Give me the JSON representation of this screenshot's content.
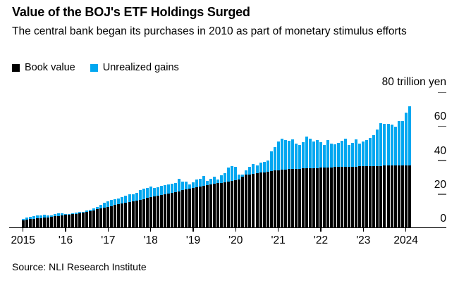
{
  "header": {
    "title": "Value of the BOJ's ETF Holdings Surged",
    "subtitle": "The central bank began its purchases in 2010 as part of monetary stimulus efforts"
  },
  "legend": [
    {
      "label": "Book value",
      "color": "#000000"
    },
    {
      "label": "Unrealized gains",
      "color": "#00a7f0"
    }
  ],
  "source": "Source: NLI Research Institute",
  "chart_data": {
    "type": "bar",
    "stacked": true,
    "title": "Value of the BOJ's ETF Holdings Surged",
    "unit": "trillion yen",
    "frequency": "monthly",
    "x_start": "2015-01",
    "x_end": "2024-02",
    "x_tick_labels": [
      "2015",
      "'16",
      "'17",
      "'18",
      "'19",
      "'20",
      "'21",
      "'22",
      "'23",
      "2024"
    ],
    "y_axis": {
      "ylim": [
        0,
        80
      ],
      "ticks": [
        {
          "value": 0,
          "label": "0",
          "dash": false
        },
        {
          "value": 20,
          "label": "20",
          "dash": true
        },
        {
          "value": 40,
          "label": "40",
          "dash": true
        },
        {
          "value": 60,
          "label": "60",
          "dash": true
        },
        {
          "value": 80,
          "label": "80 trillion yen",
          "dash": true
        }
      ]
    },
    "grid": false,
    "legend_position": "top-left",
    "series": [
      {
        "name": "Book value",
        "color": "#000000",
        "values": [
          4.5,
          4.7,
          5.0,
          5.2,
          5.5,
          5.7,
          6.0,
          6.2,
          6.5,
          6.7,
          7.0,
          7.2,
          7.5,
          7.7,
          8.0,
          8.2,
          8.5,
          8.8,
          9.2,
          9.7,
          10.3,
          10.8,
          11.3,
          11.9,
          12.3,
          12.8,
          13.3,
          13.7,
          14.2,
          14.7,
          15.1,
          15.6,
          16.1,
          16.5,
          17.0,
          17.5,
          18.1,
          18.5,
          19.0,
          19.4,
          19.8,
          20.2,
          20.6,
          21.0,
          21.4,
          22.0,
          22.5,
          23.1,
          23.5,
          23.9,
          24.3,
          24.7,
          25.1,
          25.5,
          25.8,
          26.2,
          26.5,
          26.9,
          27.2,
          27.5,
          27.8,
          28.2,
          30.1,
          31.1,
          31.5,
          31.8,
          32.1,
          32.4,
          32.7,
          33.0,
          33.4,
          33.7,
          33.9,
          34.2,
          34.4,
          34.5,
          34.6,
          34.7,
          34.8,
          34.9,
          35.0,
          35.1,
          35.1,
          35.2,
          35.3,
          35.4,
          35.6,
          35.6,
          35.7,
          35.8,
          35.8,
          35.9,
          35.9,
          36.0,
          36.0,
          36.1,
          36.2,
          36.2,
          36.3,
          36.3,
          36.4,
          36.4,
          36.5,
          36.5,
          36.6,
          36.6,
          36.7,
          36.7,
          36.8,
          36.8
        ]
      },
      {
        "name": "Unrealized gains",
        "color": "#00a7f0",
        "values": [
          0.9,
          1.2,
          1.3,
          1.6,
          1.7,
          1.7,
          1.7,
          1.1,
          0.6,
          1.2,
          1.4,
          1.4,
          0.4,
          0.3,
          0.7,
          0.9,
          0.8,
          0.4,
          0.8,
          1.0,
          1.1,
          1.5,
          2.1,
          2.8,
          3.1,
          3.4,
          3.6,
          3.6,
          3.9,
          4.2,
          4.4,
          4.1,
          4.6,
          5.6,
          5.9,
          5.8,
          6.0,
          5.0,
          4.8,
          5.4,
          5.4,
          5.3,
          5.4,
          5.5,
          7.4,
          5.0,
          4.6,
          2.2,
          3.2,
          4.4,
          4.5,
          5.7,
          2.5,
          3.5,
          4.3,
          2.3,
          4.3,
          5.3,
          8.1,
          8.9,
          7.9,
          3.3,
          1.0,
          2.5,
          4.5,
          5.6,
          4.5,
          5.8,
          6.1,
          6.5,
          11.6,
          13.8,
          16.9,
          18.1,
          17.2,
          16.5,
          17.4,
          15.0,
          14.1,
          15.4,
          18.5,
          17.2,
          15.5,
          16.6,
          14.9,
          13.2,
          15.9,
          14.1,
          13.4,
          14.3,
          15.3,
          16.4,
          12.8,
          13.9,
          15.9,
          13.6,
          14.7,
          15.4,
          16.4,
          18.1,
          21.5,
          25.2,
          24.6,
          24.6,
          24.1,
          22.7,
          26.1,
          26.1,
          30.8,
          34.6
        ]
      }
    ]
  }
}
